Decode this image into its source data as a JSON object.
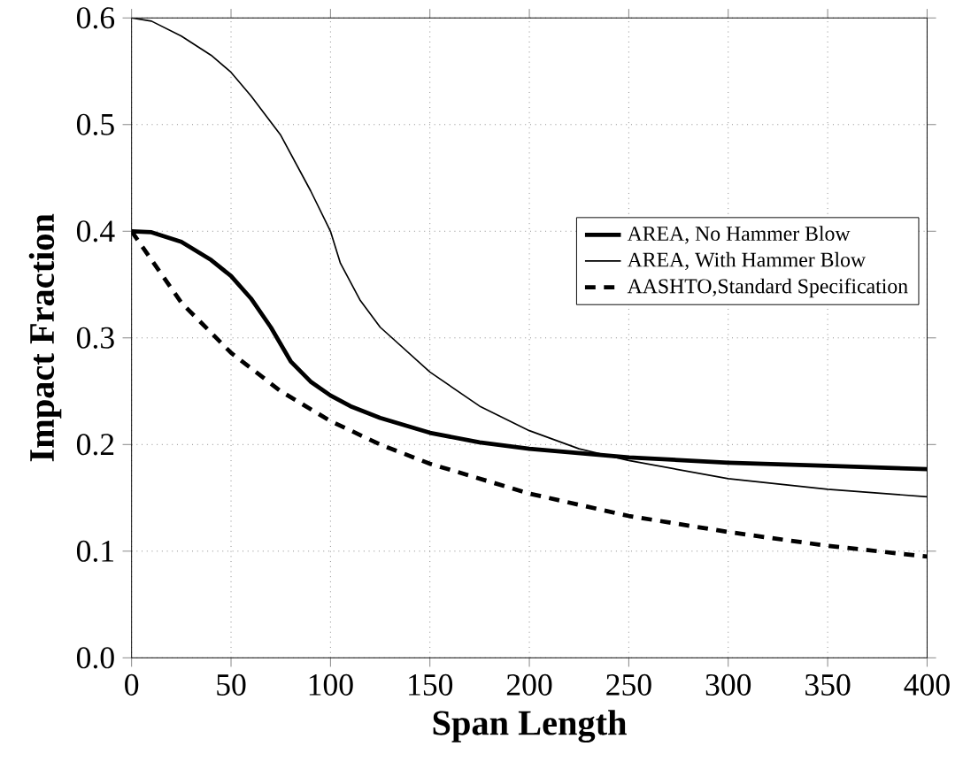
{
  "chart_data": {
    "type": "line",
    "xlabel": "Span Length",
    "ylabel": "Impact Fraction",
    "xlim": [
      0,
      400
    ],
    "ylim": [
      0,
      0.6
    ],
    "xticks": [
      0,
      50,
      100,
      150,
      200,
      250,
      300,
      350,
      400
    ],
    "yticks": [
      {
        "value": 0,
        "label": "0.0"
      },
      {
        "value": 0.1,
        "label": "0.1"
      },
      {
        "value": 0.2,
        "label": "0.2"
      },
      {
        "value": 0.3,
        "label": "0.3"
      },
      {
        "value": 0.4,
        "label": "0.4"
      },
      {
        "value": 0.5,
        "label": "0.5"
      },
      {
        "value": 0.6,
        "label": "0.6"
      }
    ],
    "grid": true,
    "legend": "right",
    "marker": "none",
    "series": [
      {
        "name": "AREA, No Hammer Blow",
        "color": "#000000",
        "line_style": "solid",
        "x": [
          0,
          10,
          25,
          40,
          50,
          60,
          70,
          80,
          90,
          100,
          110,
          125,
          150,
          175,
          200,
          250,
          300,
          350,
          400
        ],
        "values": [
          0.4,
          0.399,
          0.39,
          0.373,
          0.358,
          0.337,
          0.31,
          0.278,
          0.259,
          0.246,
          0.236,
          0.225,
          0.211,
          0.202,
          0.196,
          0.188,
          0.183,
          0.18,
          0.177
        ]
      },
      {
        "name": "AREA, With Hammer Blow",
        "color": "#000000",
        "line_style": "solid",
        "x": [
          0,
          10,
          25,
          40,
          50,
          60,
          75,
          90,
          100,
          105,
          115,
          125,
          150,
          175,
          200,
          225,
          250,
          300,
          350,
          400
        ],
        "values": [
          0.6,
          0.597,
          0.583,
          0.565,
          0.549,
          0.527,
          0.49,
          0.438,
          0.4,
          0.37,
          0.335,
          0.31,
          0.268,
          0.236,
          0.213,
          0.196,
          0.185,
          0.168,
          0.158,
          0.151
        ]
      },
      {
        "name": "AASHTO,Standard Specification",
        "color": "#000000",
        "line_style": "dashed",
        "x": [
          0,
          25,
          50,
          75,
          100,
          125,
          150,
          200,
          250,
          300,
          350,
          400
        ],
        "values": [
          0.4,
          0.333,
          0.286,
          0.25,
          0.222,
          0.2,
          0.182,
          0.154,
          0.133,
          0.118,
          0.105,
          0.095
        ]
      }
    ]
  }
}
